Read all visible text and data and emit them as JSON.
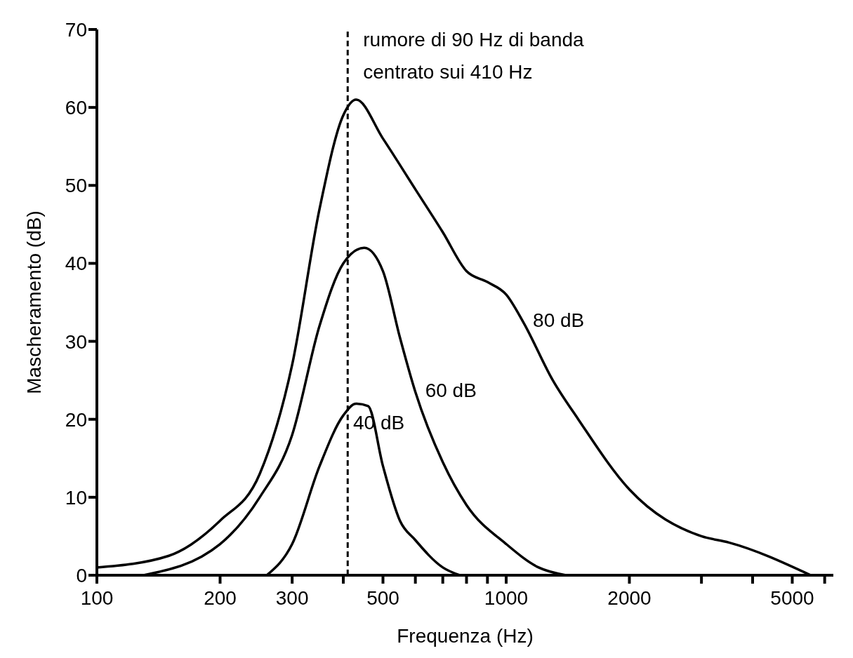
{
  "chart_data": {
    "type": "line",
    "xlabel": "Frequenza (Hz)",
    "ylabel": "Mascheramento (dB)",
    "log": "x",
    "xlim": [
      100,
      6300
    ],
    "ylim": [
      0,
      70
    ],
    "xticks": [
      100,
      200,
      300,
      {
        "value": 400,
        "label": null
      },
      500,
      {
        "value": 600,
        "label": null
      },
      {
        "value": 700,
        "label": null
      },
      {
        "value": 800,
        "label": null
      },
      {
        "value": 900,
        "label": null
      },
      1000,
      2000,
      {
        "value": 3000,
        "label": null
      },
      {
        "value": 4000,
        "label": null
      },
      5000,
      {
        "value": 6000,
        "label": null
      }
    ],
    "yticks": [
      0,
      10,
      20,
      30,
      40,
      50,
      60,
      70
    ],
    "grid": false,
    "legend": false,
    "marker": "none",
    "line_style": "solid",
    "ref_lines": [
      {
        "axis": "x",
        "value": 410,
        "label": "rumore di 90 Hz di banda\ncentrato sui 410 Hz",
        "color": "#000000",
        "line_style": "dashed"
      }
    ],
    "series": [
      {
        "name": "80 dB",
        "color": "#000000",
        "x": [
          100,
          150,
          200,
          250,
          300,
          350,
          400,
          430,
          500,
          600,
          700,
          800,
          900,
          1000,
          1100,
          1300,
          1500,
          2000,
          3000,
          3500,
          5550
        ],
        "values": [
          1,
          2.5,
          7,
          13,
          27,
          47,
          59,
          61,
          56,
          49.5,
          44,
          39,
          37.6,
          36,
          32.5,
          25,
          20,
          11,
          5,
          4.2,
          0
        ]
      },
      {
        "name": "60 dB",
        "color": "#000000",
        "x": [
          130,
          200,
          250,
          300,
          350,
          400,
          450,
          500,
          550,
          600,
          700,
          800,
          1000,
          1200,
          1400
        ],
        "values": [
          0,
          4,
          10,
          18,
          32,
          40,
          42,
          39,
          30.5,
          23.5,
          14.5,
          9,
          4,
          1,
          0
        ]
      },
      {
        "name": "40 dB",
        "color": "#000000",
        "x": [
          260,
          300,
          350,
          400,
          430,
          460,
          500,
          550,
          600,
          700,
          770
        ],
        "values": [
          0,
          4,
          14,
          20.5,
          22,
          21.7,
          14,
          7,
          4.5,
          1,
          0
        ]
      }
    ]
  }
}
